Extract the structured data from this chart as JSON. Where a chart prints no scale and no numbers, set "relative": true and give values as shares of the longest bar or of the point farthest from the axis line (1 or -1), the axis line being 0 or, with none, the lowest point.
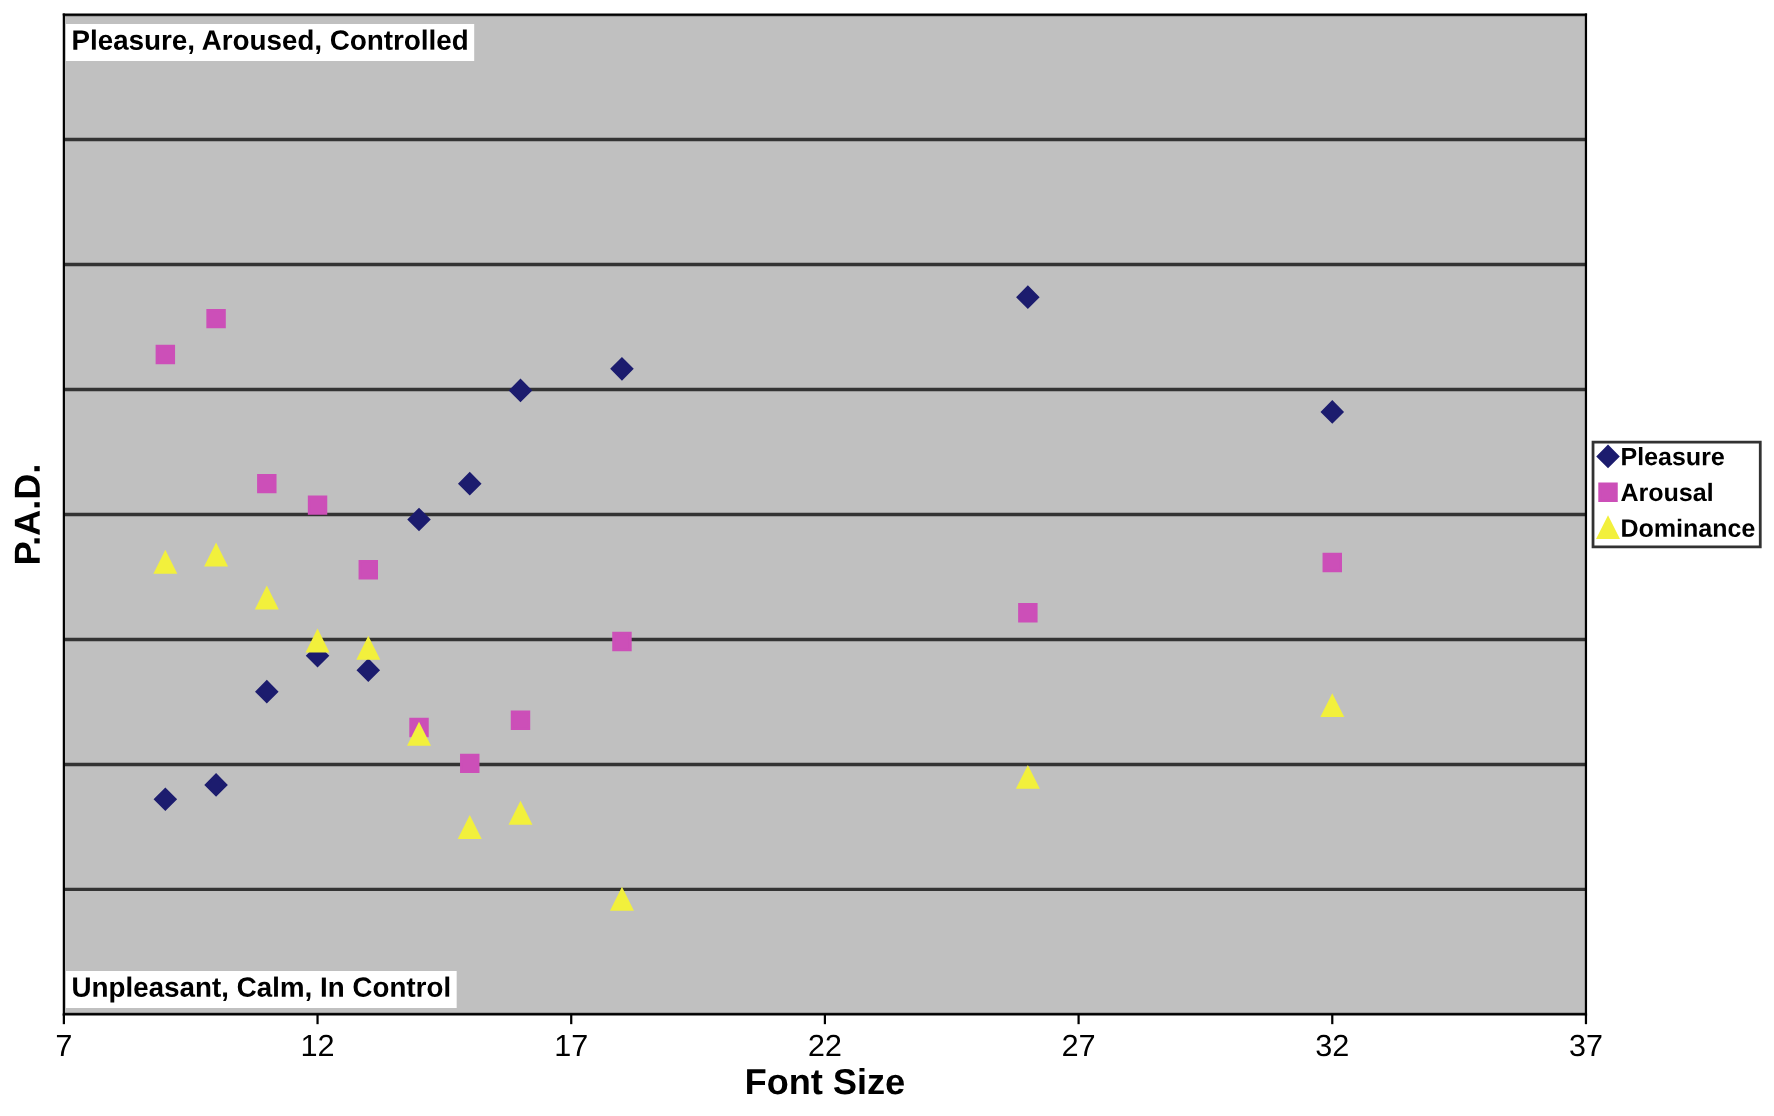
{
  "chart_data": {
    "type": "scatter",
    "xlabel": "Font Size",
    "ylabel": "P.A.D.",
    "relative": true,
    "grid": "y",
    "legend": "right",
    "annotations": [
      "Pleasure, Aroused, Controlled",
      "Unpleasant, Calm, In Control"
    ],
    "xlim": [
      7,
      37
    ],
    "xticks": [
      7,
      12,
      17,
      22,
      27,
      32,
      37
    ],
    "x": [
      9,
      10,
      11,
      12,
      13,
      14,
      15,
      16,
      18,
      26,
      32
    ],
    "series": [
      {
        "name": "Pleasure",
        "color": "#1c1c6e",
        "marker": "diamond",
        "values": [
          0.3,
          0.32,
          0.45,
          0.5,
          0.48,
          0.69,
          0.74,
          0.87,
          0.9,
          1,
          0.84
        ]
      },
      {
        "name": "Arousal",
        "color": "#cc4fb8",
        "marker": "square",
        "values": [
          0.92,
          0.97,
          0.74,
          0.71,
          0.62,
          0.4,
          0.35,
          0.41,
          0.52,
          0.56,
          0.63
        ]
      },
      {
        "name": "Dominance",
        "color": "#f2f03c",
        "marker": "triangle",
        "values": [
          0.63,
          0.64,
          0.58,
          0.52,
          0.51,
          0.39,
          0.26,
          0.28,
          0.16,
          0.33,
          0.43
        ]
      }
    ]
  }
}
